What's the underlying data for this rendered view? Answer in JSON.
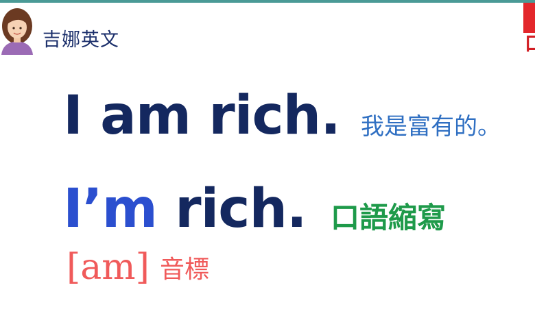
{
  "header": {
    "brand": "吉娜英文"
  },
  "corner": {
    "glyph": "口"
  },
  "lesson": {
    "line1": {
      "english": "I am rich.",
      "chinese": "我是富有的。"
    },
    "line2": {
      "english_contraction": "I’m",
      "english_rest": " rich.",
      "chinese": "口語縮寫"
    },
    "phonetic": {
      "ipa": "[am]",
      "label": "音標"
    }
  },
  "colors": {
    "top_bar": "#4a9a96",
    "english_text": "#14285f",
    "contraction": "#2b4fcf",
    "chinese_meaning": "#2f6fc2",
    "spoken_label": "#1e9a4a",
    "phonetic": "#f05a5a",
    "corner_badge": "#e3272b"
  }
}
